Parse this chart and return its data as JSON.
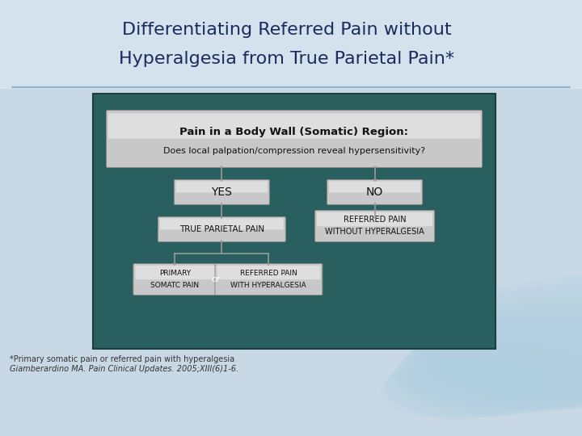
{
  "title_line1": "Differentiating Referred Pain without",
  "title_line2": "Hyperalgesia from True Parietal Pain*",
  "title_color": "#1c2b5e",
  "slide_bg": "#c8d8e5",
  "title_area_bg": "#d4e2ed",
  "flowchart_bg": "#2a5f5f",
  "footnote_line1": "*Primary somatic pain or referred pain with hyperalgesia",
  "footnote_line2": "Giamberardino MA. Pain Clinical Updates. 2005;XIII(6)1-6.",
  "box_top_text1": "Pain in a Body Wall (Somatic) Region:",
  "box_top_text2": "Does local palpation/compression reveal hypersensitivity?",
  "yes_text": "YES",
  "no_text": "NO",
  "true_parietal": "TRUE PARIETAL PAIN",
  "referred_no_hyper": "REFERRED PAIN\nWITHOUT HYPERALGESIA",
  "primary_somatic": "PRIMARY\nSOMATC PAIN",
  "referred_with_hyper": "REFERRED PAIN\nWITH HYPERALGESIA",
  "or_text": "or",
  "title_fontsize": 16,
  "footnote_fontsize": 7,
  "line_color": "#999999",
  "box_silver": "#c8c8c8",
  "box_silver_top": "#e8e8e8",
  "box_edge": "#888888"
}
